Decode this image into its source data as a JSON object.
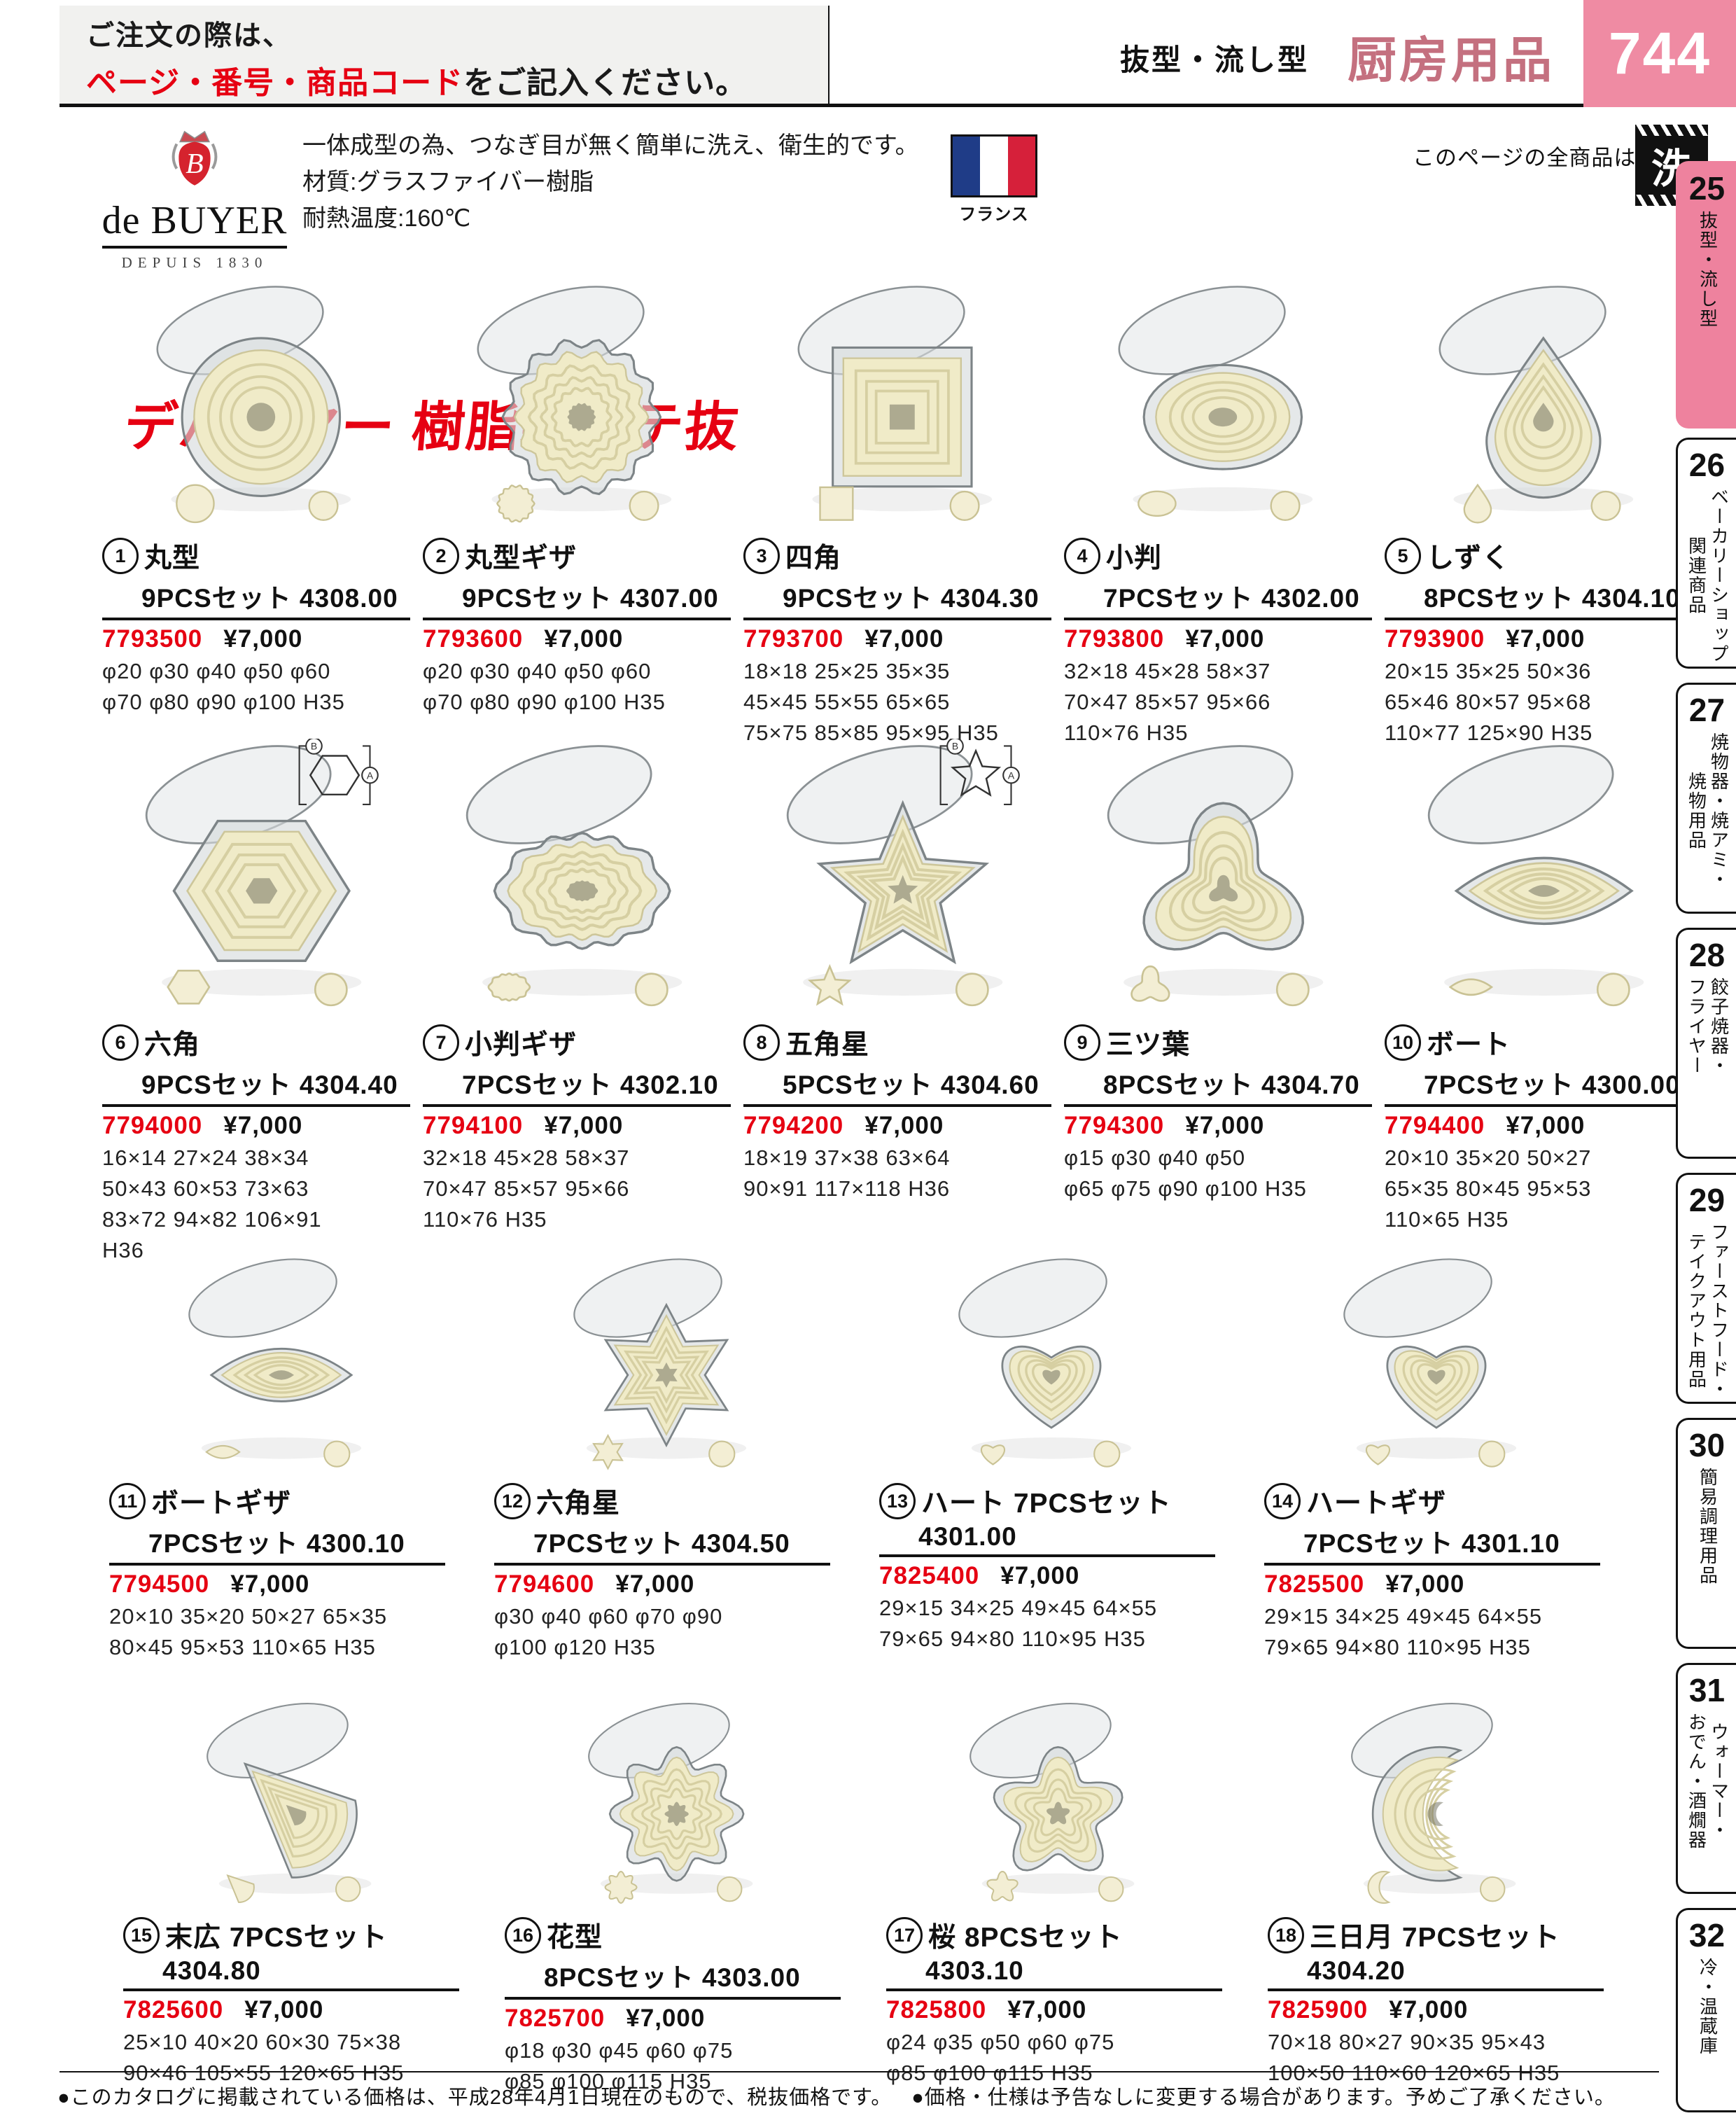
{
  "page": {
    "order_note_line1": "ご注文の際は、",
    "order_note_red": "ページ・番号・商品コード",
    "order_note_suffix": "をご記入ください。",
    "category_small": "抜型・流し型",
    "category_main": "厨房用品",
    "page_number": "744",
    "all_products_note": "このページの全商品は",
    "wash_icon_label": "洗",
    "footer_note1": "●このカタログに掲載されている価格は、平成28年4月1日現在のもので、税抜価格です。",
    "footer_note2": "●価格・仕様は予告なしに変更する場合があります。予めご了承ください。"
  },
  "brand": {
    "logo_text": "de BUYER",
    "logo_sub": "DEPUIS 1830",
    "desc_line1": "一体成型の為、つなぎ目が無く簡単に洗え、衛生的です。",
    "desc_line2": "材質:グラスファイバー樹脂",
    "desc_line3": "耐熱温度:160℃",
    "flag_caption": "フランス",
    "series_title": "デバイヤー 樹脂製パテ抜"
  },
  "sidebar": {
    "tabs": [
      {
        "num": "25",
        "cols": [
          "抜型・流し型"
        ],
        "active": true
      },
      {
        "num": "26",
        "cols": [
          "ベーカリーショップ",
          "関連商品"
        ],
        "active": false
      },
      {
        "num": "27",
        "cols": [
          "焼物器・焼アミ・",
          "焼物用品"
        ],
        "active": false
      },
      {
        "num": "28",
        "cols": [
          "餃子焼器・",
          "フライヤー"
        ],
        "active": false
      },
      {
        "num": "29",
        "cols": [
          "ファーストフード・",
          "テイクアウト用品"
        ],
        "active": false
      },
      {
        "num": "30",
        "cols": [
          "簡易調理用品"
        ],
        "active": false
      },
      {
        "num": "31",
        "cols": [
          "ウォーマー・",
          "おでん・酒燗器"
        ],
        "active": false
      },
      {
        "num": "32",
        "cols": [
          "冷・温蔵庫"
        ],
        "active": false
      }
    ]
  },
  "products": [
    {
      "num": "1",
      "row": 1,
      "shape": "circle",
      "name": "丸型",
      "set": "9PCSセット 4308.00",
      "code": "7793500",
      "price": "¥7,000",
      "dims": [
        "φ20 φ30 φ40 φ50 φ60",
        "φ70 φ80 φ90 φ100 H35"
      ],
      "diagram": false
    },
    {
      "num": "2",
      "row": 1,
      "shape": "circle-fluted",
      "name": "丸型ギザ",
      "set": "9PCSセット 4307.00",
      "code": "7793600",
      "price": "¥7,000",
      "dims": [
        "φ20 φ30 φ40 φ50 φ60",
        "φ70 φ80 φ90 φ100 H35"
      ],
      "diagram": false
    },
    {
      "num": "3",
      "row": 1,
      "shape": "square",
      "name": "四角",
      "set": "9PCSセット 4304.30",
      "code": "7793700",
      "price": "¥7,000",
      "dims": [
        "18×18 25×25 35×35",
        "45×45 55×55 65×65",
        "75×75 85×85 95×95 H35"
      ],
      "diagram": false
    },
    {
      "num": "4",
      "row": 1,
      "shape": "oval",
      "name": "小判",
      "set": "7PCSセット 4302.00",
      "code": "7793800",
      "price": "¥7,000",
      "dims": [
        "32×18 45×28 58×37",
        "70×47 85×57 95×66",
        "110×76 H35"
      ],
      "diagram": false
    },
    {
      "num": "5",
      "row": 1,
      "shape": "teardrop",
      "name": "しずく",
      "set": "8PCSセット 4304.10",
      "code": "7793900",
      "price": "¥7,000",
      "dims": [
        "20×15 35×25 50×36",
        "65×46 80×57 95×68",
        "110×77 125×90 H35"
      ],
      "diagram": false
    },
    {
      "num": "6",
      "row": 2,
      "shape": "hexagon",
      "name": "六角",
      "set": "9PCSセット 4304.40",
      "code": "7794000",
      "price": "¥7,000",
      "dims": [
        "16×14 27×24 38×34",
        "50×43 60×53 73×63",
        "83×72 94×82 106×91",
        "H36"
      ],
      "diagram": true
    },
    {
      "num": "7",
      "row": 2,
      "shape": "oval-fluted",
      "name": "小判ギザ",
      "set": "7PCSセット 4302.10",
      "code": "7794100",
      "price": "¥7,000",
      "dims": [
        "32×18 45×28 58×37",
        "70×47 85×57 95×66",
        "110×76 H35"
      ],
      "diagram": false
    },
    {
      "num": "8",
      "row": 2,
      "shape": "star5",
      "name": "五角星",
      "set": "5PCSセット 4304.60",
      "code": "7794200",
      "price": "¥7,000",
      "dims": [
        "18×19 37×38 63×64",
        "90×91 117×118 H36"
      ],
      "diagram": true
    },
    {
      "num": "9",
      "row": 2,
      "shape": "trefoil",
      "name": "三ツ葉",
      "set": "8PCSセット 4304.70",
      "code": "7794300",
      "price": "¥7,000",
      "dims": [
        "φ15 φ30 φ40 φ50",
        "φ65 φ75 φ90 φ100 H35"
      ],
      "diagram": false
    },
    {
      "num": "10",
      "row": 2,
      "shape": "lens",
      "name": "ボート",
      "set": "7PCSセット 4300.00",
      "code": "7794400",
      "price": "¥7,000",
      "dims": [
        "20×10 35×20 50×27",
        "65×35 80×45 95×53",
        "110×65 H35"
      ],
      "diagram": false
    },
    {
      "num": "11",
      "row": 3,
      "shape": "lens-fluted",
      "name": "ボートギザ",
      "set": "7PCSセット 4300.10",
      "code": "7794500",
      "price": "¥7,000",
      "dims": [
        "20×10 35×20 50×27 65×35",
        "80×45 95×53 110×65 H35"
      ],
      "diagram": false
    },
    {
      "num": "12",
      "row": 3,
      "shape": "star6",
      "name": "六角星",
      "set": "7PCSセット 4304.50",
      "code": "7794600",
      "price": "¥7,000",
      "dims": [
        "φ30 φ40 φ60 φ70 φ90",
        "φ100 φ120 H35"
      ],
      "diagram": false
    },
    {
      "num": "13",
      "row": 3,
      "shape": "heart",
      "name": "ハート 7PCSセット",
      "set": "4301.00",
      "code": "7825400",
      "price": "¥7,000",
      "dims": [
        "29×15 34×25 49×45 64×55",
        "79×65 94×80 110×95 H35"
      ],
      "diagram": false
    },
    {
      "num": "14",
      "row": 3,
      "shape": "heart-fluted",
      "name": "ハートギザ",
      "set": "7PCSセット 4301.10",
      "code": "7825500",
      "price": "¥7,000",
      "dims": [
        "29×15 34×25 49×45 64×55",
        "79×65 94×80 110×95 H35"
      ],
      "diagram": false
    },
    {
      "num": "15",
      "row": 4,
      "shape": "fan",
      "name": "末広 7PCSセット",
      "set": "4304.80",
      "code": "7825600",
      "price": "¥7,000",
      "dims": [
        "25×10 40×20 60×30 75×38",
        "90×46 105×55 120×65 H35"
      ],
      "diagram": false
    },
    {
      "num": "16",
      "row": 4,
      "shape": "flower",
      "name": "花型",
      "set": "8PCSセット 4303.00",
      "code": "7825700",
      "price": "¥7,000",
      "dims": [
        "φ18 φ30 φ45 φ60 φ75",
        "φ85 φ100 φ115 H35"
      ],
      "diagram": false
    },
    {
      "num": "17",
      "row": 4,
      "shape": "sakura",
      "name": "桜 8PCSセット",
      "set": "4303.10",
      "code": "7825800",
      "price": "¥7,000",
      "dims": [
        "φ24 φ35 φ50 φ60 φ75",
        "φ85 φ100 φ115 H35"
      ],
      "diagram": false
    },
    {
      "num": "18",
      "row": 4,
      "shape": "crescent",
      "name": "三日月 7PCSセット",
      "set": "4304.20",
      "code": "7825900",
      "price": "¥7,000",
      "dims": [
        "70×18 80×27 90×35 95×43",
        "100×50 110×60 120×65 H35"
      ],
      "diagram": false
    }
  ]
}
